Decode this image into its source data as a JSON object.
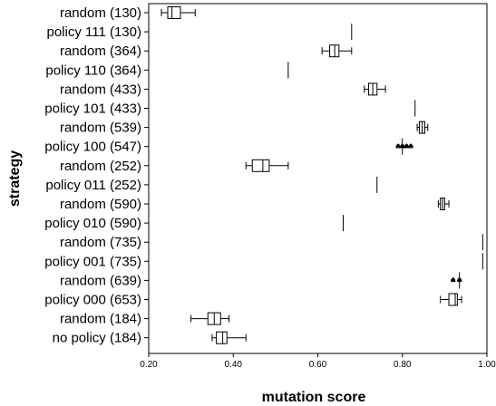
{
  "chart_data": {
    "type": "boxplot",
    "orientation": "horizontal",
    "xlabel": "mutation score",
    "ylabel": "strategy",
    "xlim": [
      0.2,
      1.0
    ],
    "xticks": [
      "0.20",
      "0.40",
      "0.60",
      "0.80",
      "1.00"
    ],
    "grid": false,
    "categories": [
      "random (130)",
      "policy 111 (130)",
      "random (364)",
      "policy 110 (364)",
      "random (433)",
      "policy 101 (433)",
      "random (539)",
      "policy 100 (547)",
      "random (252)",
      "policy 011 (252)",
      "random (590)",
      "policy 010 (590)",
      "random (735)",
      "policy 001 (735)",
      "random (639)",
      "policy 000 (653)",
      "random (184)",
      "no policy (184)"
    ],
    "boxes": [
      {
        "min": 0.23,
        "q1": 0.245,
        "median": 0.255,
        "q3": 0.275,
        "max": 0.31,
        "outliers": []
      },
      {
        "min": 0.68,
        "q1": 0.68,
        "median": 0.68,
        "q3": 0.68,
        "max": 0.68,
        "outliers": []
      },
      {
        "min": 0.61,
        "q1": 0.628,
        "median": 0.64,
        "q3": 0.65,
        "max": 0.68,
        "outliers": []
      },
      {
        "min": 0.53,
        "q1": 0.53,
        "median": 0.53,
        "q3": 0.53,
        "max": 0.53,
        "outliers": []
      },
      {
        "min": 0.71,
        "q1": 0.72,
        "median": 0.73,
        "q3": 0.74,
        "max": 0.76,
        "outliers": []
      },
      {
        "min": 0.83,
        "q1": 0.83,
        "median": 0.83,
        "q3": 0.83,
        "max": 0.83,
        "outliers": []
      },
      {
        "min": 0.835,
        "q1": 0.84,
        "median": 0.847,
        "q3": 0.853,
        "max": 0.86,
        "outliers": []
      },
      {
        "min": 0.8,
        "q1": 0.8,
        "median": 0.8,
        "q3": 0.8,
        "max": 0.8,
        "outliers": [
          0.79,
          0.8,
          0.81,
          0.82
        ]
      },
      {
        "min": 0.43,
        "q1": 0.445,
        "median": 0.47,
        "q3": 0.485,
        "max": 0.53,
        "outliers": []
      },
      {
        "min": 0.74,
        "q1": 0.74,
        "median": 0.74,
        "q3": 0.74,
        "max": 0.74,
        "outliers": []
      },
      {
        "min": 0.885,
        "q1": 0.89,
        "median": 0.895,
        "q3": 0.9,
        "max": 0.91,
        "outliers": []
      },
      {
        "min": 0.66,
        "q1": 0.66,
        "median": 0.66,
        "q3": 0.66,
        "max": 0.66,
        "outliers": []
      },
      {
        "min": 0.99,
        "q1": 0.99,
        "median": 0.99,
        "q3": 0.99,
        "max": 0.99,
        "outliers": []
      },
      {
        "min": 0.99,
        "q1": 0.99,
        "median": 0.99,
        "q3": 0.99,
        "max": 0.99,
        "outliers": []
      },
      {
        "min": 0.935,
        "q1": 0.935,
        "median": 0.935,
        "q3": 0.935,
        "max": 0.935,
        "outliers": [
          0.92,
          0.935
        ]
      },
      {
        "min": 0.89,
        "q1": 0.91,
        "median": 0.925,
        "q3": 0.93,
        "max": 0.94,
        "outliers": []
      },
      {
        "min": 0.3,
        "q1": 0.34,
        "median": 0.355,
        "q3": 0.37,
        "max": 0.39,
        "outliers": []
      },
      {
        "min": 0.35,
        "q1": 0.36,
        "median": 0.375,
        "q3": 0.385,
        "max": 0.43,
        "outliers": []
      }
    ]
  }
}
